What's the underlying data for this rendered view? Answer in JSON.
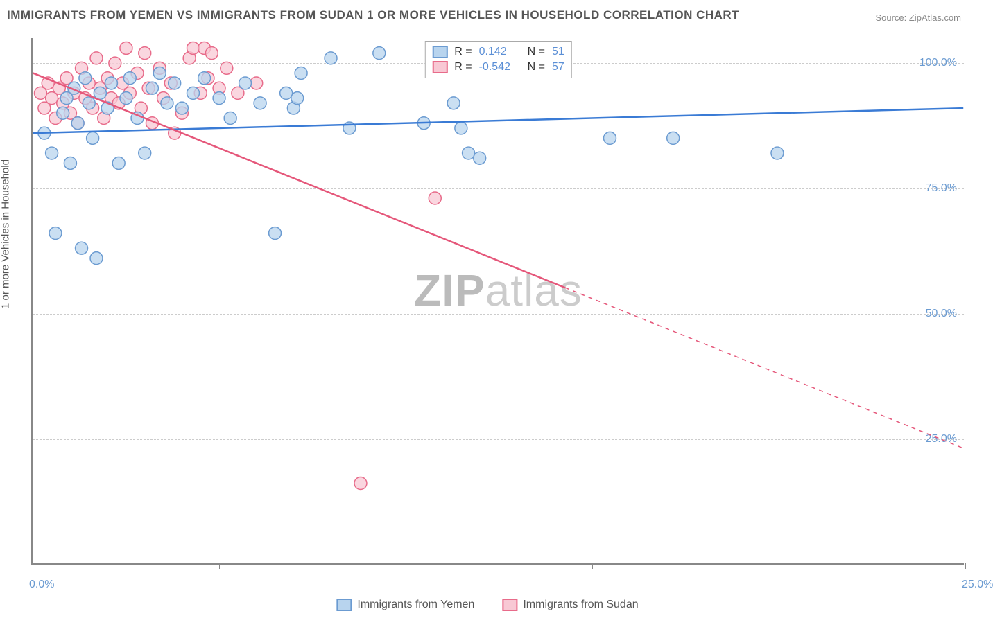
{
  "title": "IMMIGRANTS FROM YEMEN VS IMMIGRANTS FROM SUDAN 1 OR MORE VEHICLES IN HOUSEHOLD CORRELATION CHART",
  "source": "Source: ZipAtlas.com",
  "y_axis_label": "1 or more Vehicles in Household",
  "watermark_bold": "ZIP",
  "watermark_light": "atlas",
  "chart": {
    "type": "scatter",
    "xlim": [
      0,
      25
    ],
    "ylim": [
      0,
      105
    ],
    "x_ticks": [
      0,
      5,
      10,
      15,
      20,
      25
    ],
    "y_ticks": [
      25,
      50,
      75,
      100
    ],
    "x_tick_labels": {
      "0": "0.0%",
      "25": "25.0%"
    },
    "y_tick_labels": {
      "25": "25.0%",
      "50": "50.0%",
      "75": "75.0%",
      "100": "100.0%"
    },
    "grid_color": "#cccccc",
    "background_color": "#ffffff",
    "marker_radius": 9,
    "marker_stroke_width": 1.5,
    "line_width": 2.5,
    "series": [
      {
        "name": "Immigrants from Yemen",
        "color_fill": "#b8d4ee",
        "color_stroke": "#6b9bd1",
        "line_color": "#3a7bd5",
        "R": "0.142",
        "N": "51",
        "regression": {
          "x1": 0,
          "y1": 86,
          "x2": 25,
          "y2": 91,
          "solid_until_x": 25
        },
        "points": [
          [
            0.3,
            86
          ],
          [
            0.5,
            82
          ],
          [
            0.6,
            66
          ],
          [
            0.8,
            90
          ],
          [
            0.9,
            93
          ],
          [
            1.0,
            80
          ],
          [
            1.1,
            95
          ],
          [
            1.2,
            88
          ],
          [
            1.3,
            63
          ],
          [
            1.4,
            97
          ],
          [
            1.5,
            92
          ],
          [
            1.6,
            85
          ],
          [
            1.7,
            61
          ],
          [
            1.8,
            94
          ],
          [
            2.0,
            91
          ],
          [
            2.1,
            96
          ],
          [
            2.3,
            80
          ],
          [
            2.5,
            93
          ],
          [
            2.6,
            97
          ],
          [
            2.8,
            89
          ],
          [
            3.0,
            82
          ],
          [
            3.2,
            95
          ],
          [
            3.4,
            98
          ],
          [
            3.6,
            92
          ],
          [
            3.8,
            96
          ],
          [
            4.0,
            91
          ],
          [
            4.3,
            94
          ],
          [
            4.6,
            97
          ],
          [
            5.0,
            93
          ],
          [
            5.3,
            89
          ],
          [
            5.7,
            96
          ],
          [
            6.1,
            92
          ],
          [
            6.5,
            66
          ],
          [
            6.8,
            94
          ],
          [
            7.0,
            91
          ],
          [
            7.1,
            93
          ],
          [
            7.2,
            98
          ],
          [
            8.0,
            101
          ],
          [
            8.5,
            87
          ],
          [
            9.3,
            102
          ],
          [
            10.5,
            88
          ],
          [
            11.3,
            92
          ],
          [
            11.5,
            87
          ],
          [
            11.7,
            82
          ],
          [
            12.0,
            81
          ],
          [
            15.5,
            85
          ],
          [
            17.2,
            85
          ],
          [
            20.0,
            82
          ]
        ]
      },
      {
        "name": "Immigrants from Sudan",
        "color_fill": "#f8c8d4",
        "color_stroke": "#e86b8a",
        "line_color": "#e5577a",
        "R": "-0.542",
        "N": "57",
        "regression": {
          "x1": 0,
          "y1": 98,
          "x2": 25,
          "y2": 23,
          "solid_until_x": 14.3
        },
        "points": [
          [
            0.2,
            94
          ],
          [
            0.3,
            91
          ],
          [
            0.4,
            96
          ],
          [
            0.5,
            93
          ],
          [
            0.6,
            89
          ],
          [
            0.7,
            95
          ],
          [
            0.8,
            92
          ],
          [
            0.9,
            97
          ],
          [
            1.0,
            90
          ],
          [
            1.1,
            94
          ],
          [
            1.2,
            88
          ],
          [
            1.3,
            99
          ],
          [
            1.4,
            93
          ],
          [
            1.5,
            96
          ],
          [
            1.6,
            91
          ],
          [
            1.7,
            101
          ],
          [
            1.8,
            95
          ],
          [
            1.9,
            89
          ],
          [
            2.0,
            97
          ],
          [
            2.1,
            93
          ],
          [
            2.2,
            100
          ],
          [
            2.3,
            92
          ],
          [
            2.4,
            96
          ],
          [
            2.5,
            103
          ],
          [
            2.6,
            94
          ],
          [
            2.8,
            98
          ],
          [
            2.9,
            91
          ],
          [
            3.0,
            102
          ],
          [
            3.1,
            95
          ],
          [
            3.2,
            88
          ],
          [
            3.4,
            99
          ],
          [
            3.5,
            93
          ],
          [
            3.7,
            96
          ],
          [
            3.8,
            86
          ],
          [
            4.0,
            90
          ],
          [
            4.2,
            101
          ],
          [
            4.3,
            103
          ],
          [
            4.5,
            94
          ],
          [
            4.6,
            103
          ],
          [
            4.7,
            97
          ],
          [
            4.8,
            102
          ],
          [
            5.0,
            95
          ],
          [
            5.2,
            99
          ],
          [
            5.5,
            94
          ],
          [
            6.0,
            96
          ],
          [
            8.8,
            16
          ],
          [
            10.8,
            73
          ]
        ]
      }
    ]
  },
  "legend_bottom": [
    {
      "label": "Immigrants from Yemen",
      "fill": "#b8d4ee",
      "stroke": "#6b9bd1"
    },
    {
      "label": "Immigrants from Sudan",
      "fill": "#f8c8d4",
      "stroke": "#e86b8a"
    }
  ]
}
